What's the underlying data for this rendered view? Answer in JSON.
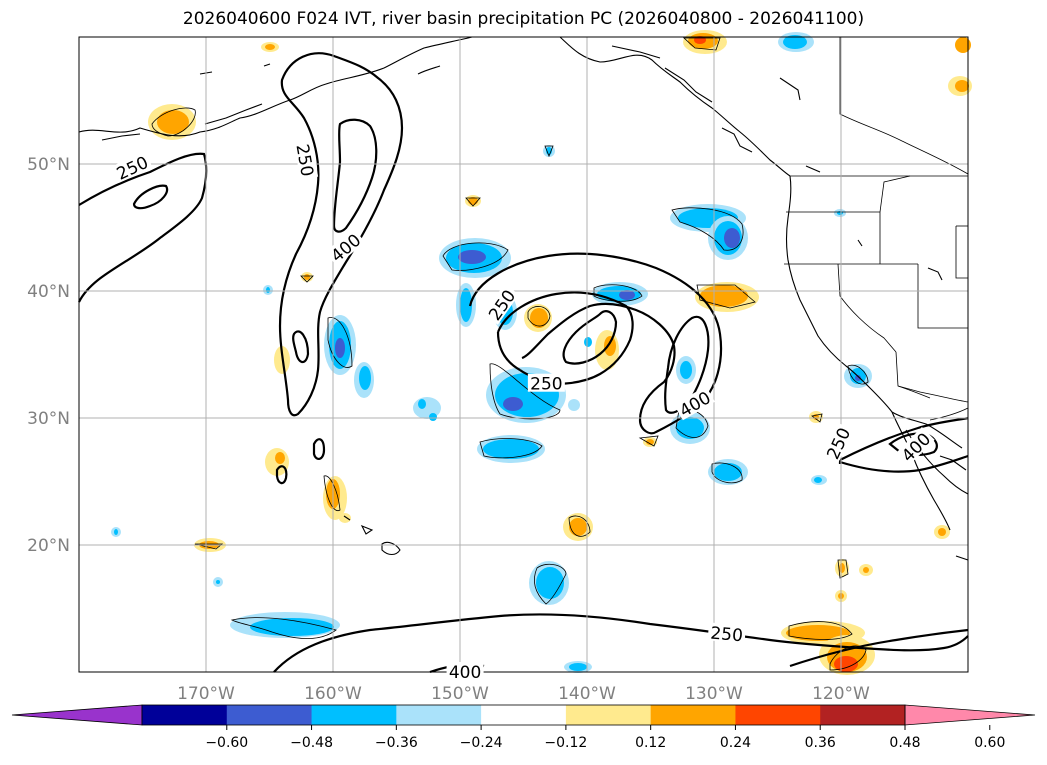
{
  "title": "2026040600 F024 IVT, river basin precipitation PC (2026040800 - 2026041100)",
  "map": {
    "projection": "equirectangular",
    "lon_range": [
      -180,
      -110
    ],
    "lat_range": [
      10,
      60
    ],
    "gridlines": true,
    "lon_ticks": [
      {
        "lon": -170,
        "label": "170°W"
      },
      {
        "lon": -160,
        "label": "160°W"
      },
      {
        "lon": -150,
        "label": "150°W"
      },
      {
        "lon": -140,
        "label": "140°W"
      },
      {
        "lon": -130,
        "label": "130°W"
      },
      {
        "lon": -120,
        "label": "120°W"
      }
    ],
    "lat_ticks": [
      {
        "lat": 50,
        "label": "50°N"
      },
      {
        "lat": 40,
        "label": "40°N"
      },
      {
        "lat": 30,
        "label": "30°N"
      },
      {
        "lat": 20,
        "label": "20°N"
      }
    ],
    "ivt_contour_labels": [
      {
        "text": "250",
        "lon": -175.8,
        "lat": 49.7,
        "rot": -25
      },
      {
        "text": "250",
        "lon": -162.2,
        "lat": 50.3,
        "rot": 80
      },
      {
        "text": "400",
        "lon": -159.0,
        "lat": 43.4,
        "rot": -40
      },
      {
        "text": "250",
        "lon": -146.7,
        "lat": 38.9,
        "rot": -55
      },
      {
        "text": "250",
        "lon": -143.2,
        "lat": 32.7,
        "rot": 0
      },
      {
        "text": "400",
        "lon": -131.5,
        "lat": 31.1,
        "rot": -30
      },
      {
        "text": "250",
        "lon": -129.0,
        "lat": 13.0,
        "rot": 5
      },
      {
        "text": "400",
        "lon": -149.6,
        "lat": 10.0,
        "rot": 0
      },
      {
        "text": "250",
        "lon": -120.2,
        "lat": 28.0,
        "rot": -65
      },
      {
        "text": "400",
        "lon": -114.1,
        "lat": 27.7,
        "rot": -45
      }
    ]
  },
  "colorbar": {
    "ticks": [
      "−0.60",
      "−0.48",
      "−0.36",
      "−0.24",
      "−0.12",
      "0.12",
      "0.24",
      "0.36",
      "0.48",
      "0.60"
    ],
    "colors": [
      "#9933cc",
      "#000099",
      "#3d5cd1",
      "#00bfff",
      "#aae2fa",
      "#ffffff",
      "#ffea8e",
      "#ffa500",
      "#ff4500",
      "#b22222",
      "#ff88aa"
    ]
  }
}
